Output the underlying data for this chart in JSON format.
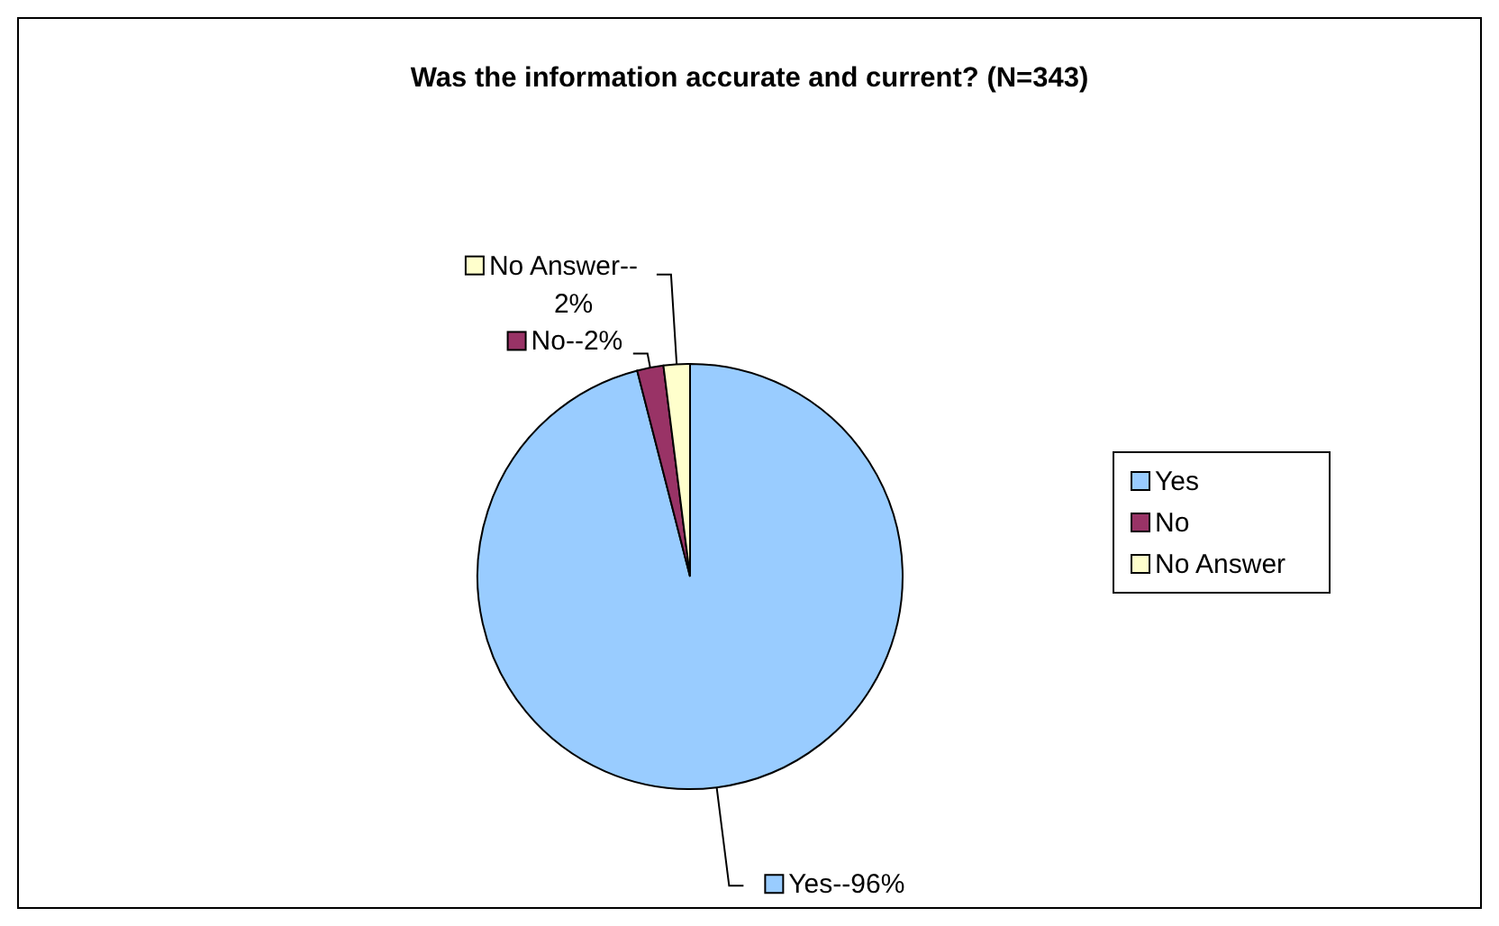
{
  "chart_data": {
    "type": "pie",
    "title": "Was the information accurate and current? (N=343)",
    "categories": [
      "Yes",
      "No",
      "No Answer"
    ],
    "values": [
      96,
      2,
      2
    ],
    "colors": [
      "#99ccff",
      "#993366",
      "#ffffcc"
    ],
    "value_labels": [
      "Yes--96%",
      "No--2%",
      "No Answer--2%"
    ],
    "legend": "right"
  }
}
